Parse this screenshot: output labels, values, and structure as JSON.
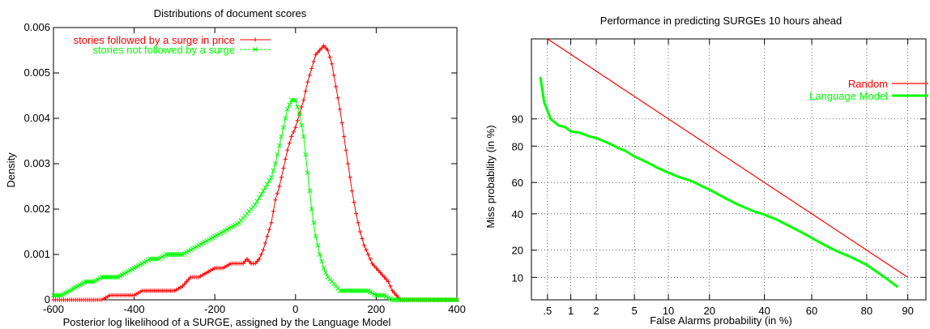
{
  "chart_data": [
    {
      "type": "line",
      "title": "Distributions of document scores",
      "xlabel": "Posterior log likelihood of a SURGE, assigned by the Language Model",
      "ylabel": "Density",
      "xlim": [
        -600,
        400
      ],
      "ylim": [
        0,
        0.006
      ],
      "x_ticks": [
        -600,
        -400,
        -200,
        0,
        200,
        400
      ],
      "x_tick_labels": [
        "-600",
        "-400",
        "-200",
        "0",
        "200",
        "400"
      ],
      "y_ticks": [
        0,
        0.001,
        0.002,
        0.003,
        0.004,
        0.005,
        0.006
      ],
      "y_tick_labels": [
        "0",
        "0.001",
        "0.002",
        "0.003",
        "0.004",
        "0.005",
        "0.006"
      ],
      "grid": false,
      "legend_position": "top-left",
      "series": [
        {
          "name": "stories followed by a surge in price",
          "color": "#ff0000",
          "marker": "plus",
          "x": [
            -600,
            -560,
            -520,
            -480,
            -460,
            -440,
            -420,
            -400,
            -380,
            -360,
            -340,
            -320,
            -300,
            -280,
            -260,
            -240,
            -220,
            -200,
            -180,
            -160,
            -140,
            -130,
            -120,
            -110,
            -100,
            -90,
            -80,
            -70,
            -60,
            -50,
            -40,
            -30,
            -20,
            -10,
            0,
            10,
            20,
            30,
            40,
            50,
            60,
            70,
            80,
            90,
            100,
            110,
            120,
            130,
            140,
            150,
            160,
            170,
            180,
            190,
            200,
            210,
            220,
            230,
            240,
            250,
            260,
            280,
            300,
            340,
            380,
            400
          ],
          "y": [
            0,
            0,
            0,
            0,
            0.0001,
            0.0001,
            0.0001,
            0.0001,
            0.0002,
            0.0002,
            0.0002,
            0.0002,
            0.0002,
            0.0003,
            0.0005,
            0.0005,
            0.0006,
            0.0007,
            0.0007,
            0.0008,
            0.0008,
            0.0008,
            0.0009,
            0.0008,
            0.0008,
            0.0009,
            0.0011,
            0.0014,
            0.0017,
            0.0022,
            0.0025,
            0.0029,
            0.0033,
            0.0036,
            0.0038,
            0.0041,
            0.0044,
            0.0048,
            0.0051,
            0.0054,
            0.0055,
            0.0056,
            0.0055,
            0.0052,
            0.0047,
            0.0042,
            0.0036,
            0.003,
            0.0024,
            0.0019,
            0.0015,
            0.0012,
            0.001,
            0.0008,
            0.0007,
            0.0006,
            0.0005,
            0.0004,
            0.0002,
            0.0001,
            0,
            0,
            0,
            0,
            0,
            0
          ]
        },
        {
          "name": "stories not followed by a surge",
          "color": "#00ff00",
          "marker": "x",
          "x": [
            -600,
            -580,
            -560,
            -540,
            -520,
            -500,
            -480,
            -460,
            -440,
            -420,
            -400,
            -380,
            -360,
            -340,
            -320,
            -300,
            -280,
            -260,
            -240,
            -220,
            -200,
            -180,
            -160,
            -140,
            -120,
            -100,
            -80,
            -60,
            -50,
            -40,
            -30,
            -20,
            -10,
            0,
            10,
            20,
            30,
            40,
            50,
            60,
            70,
            80,
            90,
            100,
            110,
            120,
            140,
            160,
            180,
            200,
            220,
            240,
            260,
            280,
            300,
            340,
            380,
            400
          ],
          "y": [
            0.0001,
            0.0001,
            0.0002,
            0.0003,
            0.0004,
            0.0004,
            0.0005,
            0.0005,
            0.0005,
            0.0006,
            0.0007,
            0.0008,
            0.0009,
            0.0009,
            0.001,
            0.001,
            0.001,
            0.0011,
            0.0012,
            0.0013,
            0.0014,
            0.0015,
            0.0016,
            0.0017,
            0.0019,
            0.0021,
            0.0024,
            0.0027,
            0.003,
            0.0034,
            0.0038,
            0.0042,
            0.0044,
            0.0044,
            0.0041,
            0.0036,
            0.0028,
            0.002,
            0.0014,
            0.001,
            0.0007,
            0.0005,
            0.0004,
            0.0003,
            0.0002,
            0.0002,
            0.0002,
            0.0002,
            0.0002,
            0.0001,
            0.0001,
            0,
            0,
            0,
            0,
            0,
            0,
            0
          ]
        }
      ]
    },
    {
      "type": "line",
      "title": "Performance in predicting SURGEs 10 hours ahead",
      "xlabel": "False Alarms probability (in %)",
      "ylabel": "Miss probability (in %)",
      "scale": "normal-deviate (DET)",
      "xlim": [
        0.3,
        93
      ],
      "ylim": [
        5,
        99.5
      ],
      "x_ticks": [
        0.5,
        1,
        2,
        5,
        10,
        20,
        40,
        60,
        80,
        90
      ],
      "x_tick_labels": [
        ".5",
        "1",
        "2",
        "5",
        "10",
        "20",
        "40",
        "60",
        "80",
        "90"
      ],
      "y_ticks": [
        10,
        20,
        40,
        60,
        80,
        90
      ],
      "y_tick_labels": [
        "10",
        "20",
        "40",
        "60",
        "80",
        "90"
      ],
      "grid": true,
      "legend_position": "top-right",
      "series": [
        {
          "name": "Random",
          "color": "#ff0000",
          "x": [
            0.5,
            1,
            2,
            5,
            10,
            20,
            40,
            60,
            80,
            90
          ],
          "y": [
            99.5,
            99,
            98,
            95,
            90,
            80,
            60,
            40,
            20,
            10
          ]
        },
        {
          "name": "Language Model",
          "color": "#00ff00",
          "x": [
            0.4,
            0.45,
            0.55,
            0.7,
            0.85,
            1,
            1.3,
            1.7,
            2,
            2.5,
            3,
            3.5,
            4,
            5,
            6,
            7,
            8,
            10,
            12,
            15,
            18,
            20,
            25,
            30,
            35,
            40,
            45,
            50,
            55,
            60,
            65,
            70,
            75,
            80,
            85,
            88
          ],
          "y": [
            97.5,
            94,
            90,
            88,
            87.5,
            86,
            85.5,
            84,
            83.5,
            82,
            80.5,
            79,
            78,
            75,
            73,
            71,
            69,
            66,
            63.5,
            61,
            57.5,
            55.5,
            50,
            45.5,
            42,
            39.5,
            36.5,
            33,
            29.5,
            26,
            22.5,
            19.5,
            17,
            14,
            10,
            7.5
          ]
        }
      ]
    }
  ]
}
